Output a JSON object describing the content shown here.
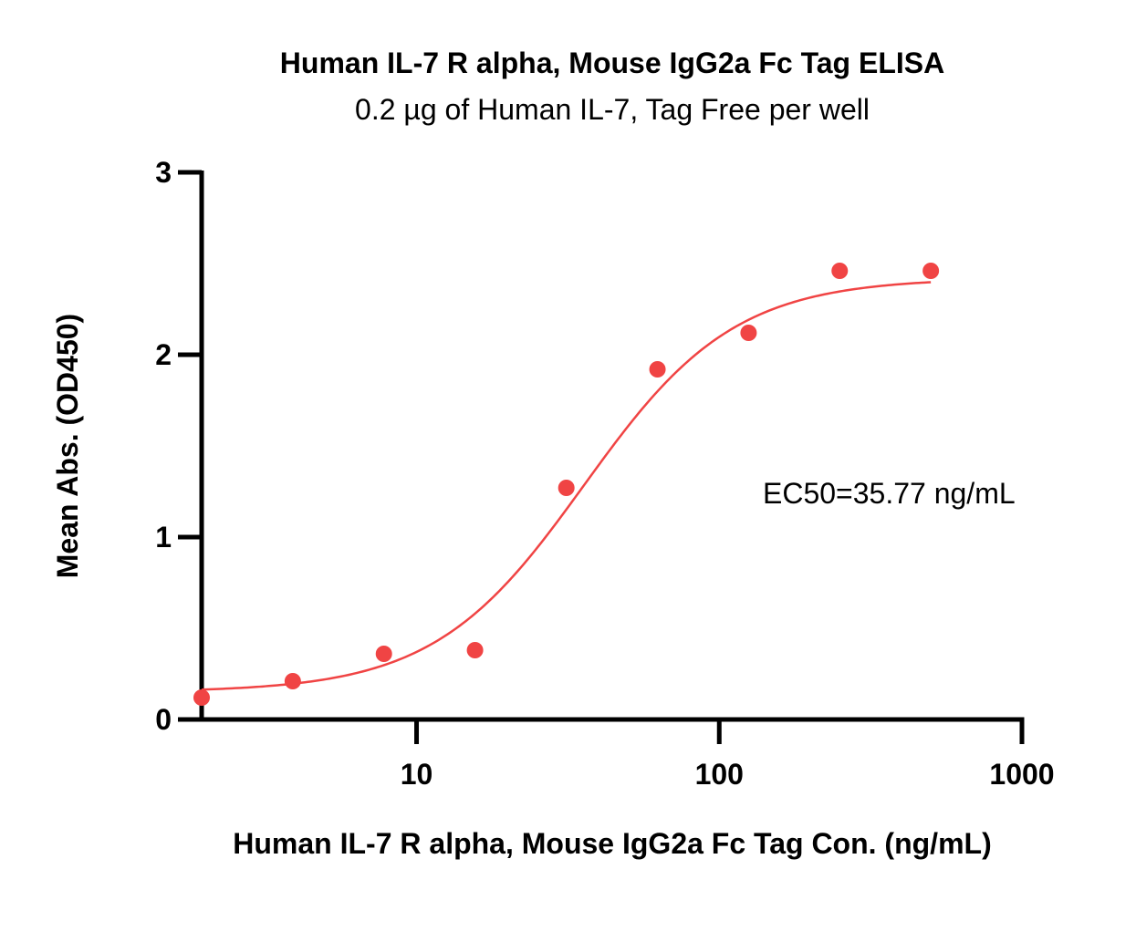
{
  "chart_data": {
    "type": "scatter",
    "title": "Human IL-7 R alpha, Mouse IgG2a Fc Tag  ELISA",
    "subtitle": "0.2 µg of Human IL-7, Tag Free per well",
    "xlabel": "Human IL-7 R alpha, Mouse IgG2a Fc Tag  Con. (ng/mL)",
    "ylabel": "Mean Abs. (OD450)",
    "xscale": "log",
    "xlim": [
      1.95,
      1000
    ],
    "ylim": [
      0,
      3
    ],
    "xticks": [
      10,
      100,
      1000
    ],
    "xtick_labels": [
      "10",
      "100",
      "1000"
    ],
    "yticks": [
      0,
      1,
      2,
      3
    ],
    "ytick_labels": [
      "0",
      "1",
      "2",
      "3"
    ],
    "grid": false,
    "series": [
      {
        "x": [
          1.95,
          3.9,
          7.8,
          15.6,
          31.25,
          62.5,
          125,
          250,
          500
        ],
        "y": [
          0.12,
          0.21,
          0.36,
          0.38,
          1.27,
          1.92,
          2.12,
          2.46,
          2.46
        ],
        "color": "#f04444"
      }
    ],
    "fit_curve": {
      "model": "4PL",
      "bottom": 0.15,
      "top": 2.42,
      "ec50": 35.77,
      "hill": 1.75,
      "color": "#f04444"
    },
    "annotations": [
      {
        "text": "EC50=35.77 ng/mL"
      }
    ]
  }
}
